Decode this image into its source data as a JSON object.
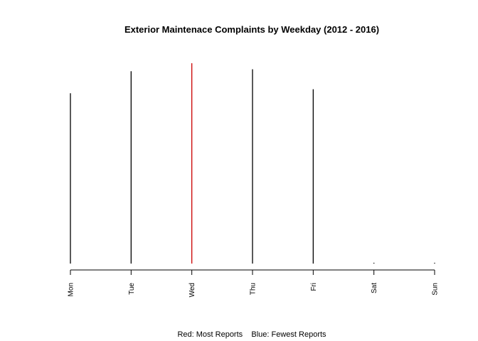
{
  "chart_data": {
    "type": "bar",
    "title": "Exterior Maintenace Complaints by Weekday (2012 - 2016)",
    "subtitle": "",
    "xlabel": "",
    "ylabel": "",
    "caption": "Red: Most Reports    Blue: Fewest Reports",
    "categories": [
      "Mon",
      "Tue",
      "Wed",
      "Thu",
      "Fri",
      "Sat",
      "Sun"
    ],
    "values": [
      85,
      96,
      100,
      97,
      87,
      0.4,
      0.4
    ],
    "ylim": [
      0,
      100
    ],
    "grid": false,
    "legend": "none",
    "colors": {
      "default": "#000000",
      "max": "#cc0000",
      "min": "#0000ff",
      "axis": "#000000"
    },
    "highlight": {
      "max_category": "Wed"
    }
  }
}
